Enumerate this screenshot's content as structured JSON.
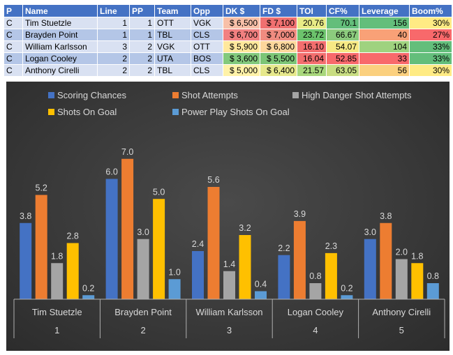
{
  "table": {
    "headers": [
      "P",
      "Name",
      "Line",
      "PP",
      "Team",
      "Opp",
      "DK $",
      "FD $",
      "TOI",
      "CF%",
      "Leverage",
      "Boom%"
    ],
    "rows": [
      {
        "pos": "C",
        "name": "Tim Stuetzle",
        "line": "1",
        "pp": "1",
        "team": "OTT",
        "opp": "VGK",
        "dk": "$ 6,500",
        "fd": "$ 7,100",
        "toi": "20.76",
        "cf": "70.1",
        "lev": "156",
        "boom": "30%"
      },
      {
        "pos": "C",
        "name": "Brayden Point",
        "line": "1",
        "pp": "1",
        "team": "TBL",
        "opp": "CLS",
        "dk": "$ 6,700",
        "fd": "$ 7,000",
        "toi": "23.72",
        "cf": "66.67",
        "lev": "40",
        "boom": "27%"
      },
      {
        "pos": "C",
        "name": "William Karlsson",
        "line": "3",
        "pp": "2",
        "team": "VGK",
        "opp": "OTT",
        "dk": "$ 5,900",
        "fd": "$ 6,800",
        "toi": "16.10",
        "cf": "54.07",
        "lev": "104",
        "boom": "33%"
      },
      {
        "pos": "C",
        "name": "Logan Cooley",
        "line": "2",
        "pp": "2",
        "team": "UTA",
        "opp": "BOS",
        "dk": "$ 3,600",
        "fd": "$ 5,500",
        "toi": "16.04",
        "cf": "52.85",
        "lev": "33",
        "boom": "33%"
      },
      {
        "pos": "C",
        "name": "Anthony Cirelli",
        "line": "2",
        "pp": "2",
        "team": "TBL",
        "opp": "CLS",
        "dk": "$ 5,000",
        "fd": "$ 6,400",
        "toi": "21.57",
        "cf": "63.05",
        "lev": "56",
        "boom": "30%"
      }
    ],
    "cell_colors": {
      "dk": [
        "#f8c0a8",
        "#f28080",
        "#ffe89c",
        "#82c97c",
        "#fff2a8"
      ],
      "fd": [
        "#f07070",
        "#f08c80",
        "#fdd79c",
        "#7cc576",
        "#e6e88c"
      ],
      "toi": [
        "#e8eb86",
        "#6cc36c",
        "#f36e6e",
        "#f36e6e",
        "#a8d77c"
      ],
      "cf": [
        "#63be7b",
        "#8ccc7e",
        "#f6e984",
        "#f8696b",
        "#c8dd82"
      ],
      "lev": [
        "#63be7b",
        "#f9a177",
        "#9fd27f",
        "#f8696b",
        "#fbd07f"
      ],
      "boom": [
        "#ffeb84",
        "#f8696b",
        "#63be7b",
        "#63be7b",
        "#ffeb84"
      ]
    }
  },
  "chart_data": {
    "type": "bar",
    "title": "",
    "categories": [
      "Tim Stuetzle",
      "Brayden Point",
      "William Karlsson",
      "Logan Cooley",
      "Anthony Cirelli"
    ],
    "category_sublabels": [
      "1",
      "2",
      "3",
      "4",
      "5"
    ],
    "series": [
      {
        "name": "Scoring Chances",
        "color": "#4472c4",
        "values": [
          3.8,
          6.0,
          2.4,
          2.2,
          3.0
        ]
      },
      {
        "name": "Shot Attempts",
        "color": "#ed7d31",
        "values": [
          5.2,
          7.0,
          5.6,
          3.9,
          3.8
        ]
      },
      {
        "name": "High Danger Shot Attempts",
        "color": "#a5a5a5",
        "values": [
          1.8,
          3.0,
          1.4,
          0.8,
          2.0
        ]
      },
      {
        "name": "Shots On Goal",
        "color": "#ffc000",
        "values": [
          2.8,
          5.0,
          3.2,
          2.3,
          1.8
        ]
      },
      {
        "name": "Power Play Shots On Goal",
        "color": "#5b9bd5",
        "values": [
          0.2,
          1.0,
          0.4,
          0.2,
          0.8
        ]
      }
    ],
    "ylim": [
      0,
      8
    ],
    "legend_position": "top",
    "grid": false,
    "xlabel": "",
    "ylabel": ""
  }
}
